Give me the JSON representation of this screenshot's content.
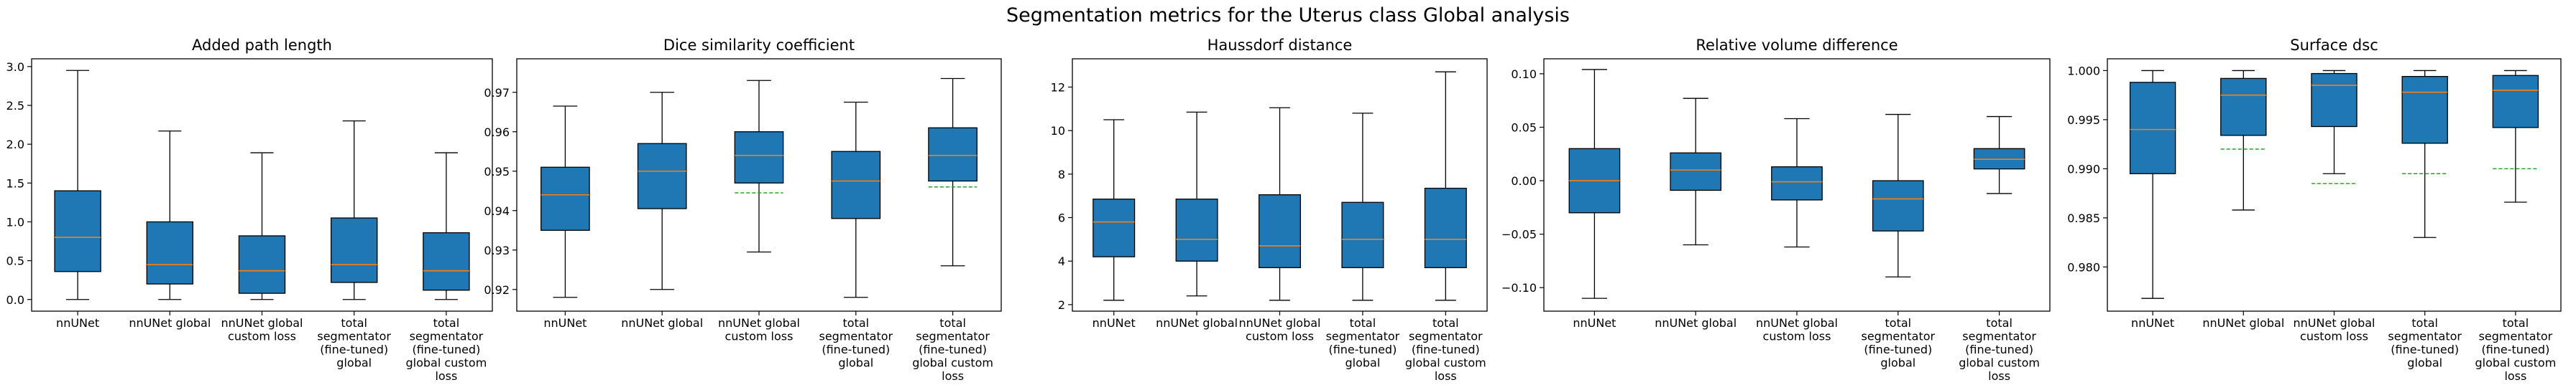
{
  "suptitle": "Segmentation metrics for the Uterus class Global analysis",
  "colors": {
    "box": "#1f77b4",
    "median": "#ff7f0e",
    "mean": "#2ca02c",
    "line": "#000000"
  },
  "chart_data": [
    {
      "type": "box",
      "title": "Added path length",
      "categories": [
        "nnUNet",
        "nnUNet global",
        "nnUNet global custom loss",
        "total segmentator (fine-tuned) global",
        "total segmentator (fine-tuned) global custom loss"
      ],
      "category_lines": [
        [
          "nnUNet"
        ],
        [
          "nnUNet global"
        ],
        [
          "nnUNet global",
          "custom loss"
        ],
        [
          "total",
          "segmentator",
          "(fine-tuned)",
          "global"
        ],
        [
          "total",
          "segmentator",
          "(fine-tuned)",
          "global custom",
          "loss"
        ]
      ],
      "ylim": [
        -0.15,
        3.1
      ],
      "yticks": [
        "0.0",
        "0.5",
        "1.0",
        "1.5",
        "2.0",
        "2.5",
        "3.0"
      ],
      "boxes": [
        {
          "whislo": 0.0,
          "q1": 0.36,
          "med": 0.8,
          "q3": 1.4,
          "whishi": 2.95
        },
        {
          "whislo": 0.0,
          "q1": 0.2,
          "med": 0.45,
          "q3": 1.0,
          "whishi": 2.17
        },
        {
          "whislo": 0.0,
          "q1": 0.08,
          "med": 0.37,
          "q3": 0.82,
          "whishi": 1.89
        },
        {
          "whislo": 0.0,
          "q1": 0.22,
          "med": 0.45,
          "q3": 1.05,
          "whishi": 2.3
        },
        {
          "whislo": 0.0,
          "q1": 0.12,
          "med": 0.37,
          "q3": 0.86,
          "whishi": 1.89
        }
      ]
    },
    {
      "type": "box",
      "title": "Dice similarity coefficient",
      "categories": [
        "nnUNet",
        "nnUNet global",
        "nnUNet global custom loss",
        "total segmentator (fine-tuned) global",
        "total segmentator (fine-tuned) global custom loss"
      ],
      "category_lines": [
        [
          "nnUNet"
        ],
        [
          "nnUNet global"
        ],
        [
          "nnUNet global",
          "custom loss"
        ],
        [
          "total",
          "segmentator",
          "(fine-tuned)",
          "global"
        ],
        [
          "total",
          "segmentator",
          "(fine-tuned)",
          "global custom",
          "loss"
        ]
      ],
      "ylim": [
        0.9145,
        0.9785
      ],
      "yticks": [
        "0.92",
        "0.93",
        "0.94",
        "0.95",
        "0.96",
        "0.97"
      ],
      "boxes": [
        {
          "whislo": 0.918,
          "q1": 0.935,
          "med": 0.944,
          "q3": 0.951,
          "whishi": 0.9665
        },
        {
          "whislo": 0.92,
          "q1": 0.9405,
          "med": 0.95,
          "q3": 0.957,
          "whishi": 0.97
        },
        {
          "whislo": 0.9295,
          "q1": 0.947,
          "med": 0.954,
          "q3": 0.96,
          "whishi": 0.973,
          "mean": 0.9445
        },
        {
          "whislo": 0.918,
          "q1": 0.938,
          "med": 0.9475,
          "q3": 0.955,
          "whishi": 0.9675
        },
        {
          "whislo": 0.926,
          "q1": 0.9475,
          "med": 0.954,
          "q3": 0.961,
          "whishi": 0.9735,
          "mean": 0.946
        }
      ]
    },
    {
      "type": "box",
      "title": "Haussdorf distance",
      "categories": [
        "nnUNet",
        "nnUNet global",
        "nnUNet global custom loss",
        "total segmentator (fine-tuned) global",
        "total segmentator (fine-tuned) global custom loss"
      ],
      "category_lines": [
        [
          "nnUNet"
        ],
        [
          "nnUNet global"
        ],
        [
          "nnUNet global",
          "custom loss"
        ],
        [
          "total",
          "segmentator",
          "(fine-tuned)",
          "global"
        ],
        [
          "total",
          "segmentator",
          "(fine-tuned)",
          "global custom",
          "loss"
        ]
      ],
      "ylim": [
        1.7,
        13.3
      ],
      "yticks": [
        "2",
        "4",
        "6",
        "8",
        "10",
        "12"
      ],
      "boxes": [
        {
          "whislo": 2.2,
          "q1": 4.2,
          "med": 5.8,
          "q3": 6.85,
          "whishi": 10.5
        },
        {
          "whislo": 2.4,
          "q1": 4.0,
          "med": 5.0,
          "q3": 6.85,
          "whishi": 10.85
        },
        {
          "whislo": 2.2,
          "q1": 3.7,
          "med": 4.7,
          "q3": 7.05,
          "whishi": 11.05
        },
        {
          "whislo": 2.2,
          "q1": 3.7,
          "med": 5.0,
          "q3": 6.7,
          "whishi": 10.8
        },
        {
          "whislo": 2.2,
          "q1": 3.7,
          "med": 5.0,
          "q3": 7.35,
          "whishi": 12.7
        }
      ]
    },
    {
      "type": "box",
      "title": "Relative volume difference",
      "categories": [
        "nnUNet",
        "nnUNet global",
        "nnUNet global custom loss",
        "total segmentator (fine-tuned) global",
        "total segmentator (fine-tuned) global custom loss"
      ],
      "category_lines": [
        [
          "nnUNet"
        ],
        [
          "nnUNet global"
        ],
        [
          "nnUNet global",
          "custom loss"
        ],
        [
          "total",
          "segmentator",
          "(fine-tuned)",
          "global"
        ],
        [
          "total",
          "segmentator",
          "(fine-tuned)",
          "global custom",
          "loss"
        ]
      ],
      "ylim": [
        -0.122,
        0.114
      ],
      "yticks": [
        "−0.10",
        "−0.05",
        "0.00",
        "0.05",
        "0.10"
      ],
      "ytick_values": [
        -0.1,
        -0.05,
        0.0,
        0.05,
        0.1
      ],
      "boxes": [
        {
          "whislo": -0.11,
          "q1": -0.03,
          "med": 0.0,
          "q3": 0.03,
          "whishi": 0.104
        },
        {
          "whislo": -0.06,
          "q1": -0.009,
          "med": 0.01,
          "q3": 0.026,
          "whishi": 0.077
        },
        {
          "whislo": -0.062,
          "q1": -0.018,
          "med": -0.001,
          "q3": 0.013,
          "whishi": 0.058
        },
        {
          "whislo": -0.09,
          "q1": -0.047,
          "med": -0.017,
          "q3": 0.0,
          "whishi": 0.062
        },
        {
          "whislo": -0.012,
          "q1": 0.011,
          "med": 0.02,
          "q3": 0.03,
          "whishi": 0.06
        }
      ]
    },
    {
      "type": "box",
      "title": "Surface dsc",
      "categories": [
        "nnUNet",
        "nnUNet global",
        "nnUNet global custom loss",
        "total segmentator (fine-tuned) global",
        "total segmentator (fine-tuned) global custom loss"
      ],
      "category_lines": [
        [
          "nnUNet"
        ],
        [
          "nnUNet global"
        ],
        [
          "nnUNet global",
          "custom loss"
        ],
        [
          "total",
          "segmentator",
          "(fine-tuned)",
          "global"
        ],
        [
          "total",
          "segmentator",
          "(fine-tuned)",
          "global custom",
          "loss"
        ]
      ],
      "ylim": [
        0.9755,
        1.0012
      ],
      "yticks": [
        "0.980",
        "0.985",
        "0.990",
        "0.995",
        "1.000"
      ],
      "boxes": [
        {
          "whislo": 0.9768,
          "q1": 0.9895,
          "med": 0.994,
          "q3": 0.9988,
          "whishi": 1.0
        },
        {
          "whislo": 0.9858,
          "q1": 0.9934,
          "med": 0.9975,
          "q3": 0.9992,
          "whishi": 1.0,
          "mean": 0.992
        },
        {
          "whislo": 0.9895,
          "q1": 0.9943,
          "med": 0.9985,
          "q3": 0.9997,
          "whishi": 1.0,
          "mean": 0.9885
        },
        {
          "whislo": 0.983,
          "q1": 0.9926,
          "med": 0.9978,
          "q3": 0.9994,
          "whishi": 1.0,
          "mean": 0.9895
        },
        {
          "whislo": 0.9866,
          "q1": 0.9942,
          "med": 0.998,
          "q3": 0.9995,
          "whishi": 1.0,
          "mean": 0.99
        }
      ]
    }
  ]
}
